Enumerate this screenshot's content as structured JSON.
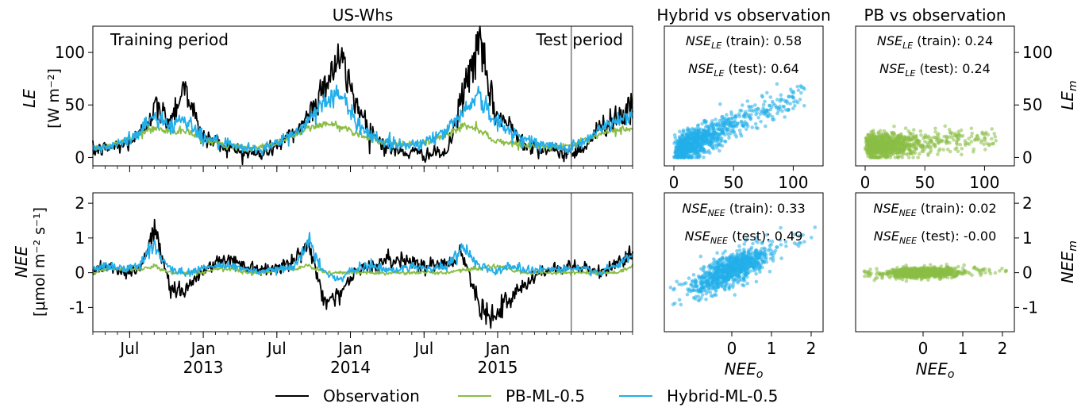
{
  "colors": {
    "observation": "#000000",
    "pb": "#8bbd45",
    "hybrid": "#23aeea",
    "divider": "#808080"
  },
  "legend": {
    "placement": "bottom-center",
    "items": [
      "Observation",
      "PB-ML-0.5",
      "Hybrid-ML-0.5"
    ]
  },
  "chart_data": [
    {
      "type": "line",
      "title": "US-Whs",
      "ylabel_line1": "LE",
      "ylabel_line2": "[W m⁻²]",
      "annotations": [
        "Training period",
        "Test period"
      ],
      "x_range": [
        "2012-04",
        "2015-12"
      ],
      "split_date": "2015-07",
      "ylim": [
        -8,
        125
      ],
      "yticks": [
        0,
        50,
        100
      ],
      "xtick_labels": [
        {
          "date": "2012-07",
          "label": "Jul",
          "year": ""
        },
        {
          "date": "2013-01",
          "label": "Jan",
          "year": "2013"
        },
        {
          "date": "2013-07",
          "label": "Jul",
          "year": ""
        },
        {
          "date": "2014-01",
          "label": "Jan",
          "year": "2014"
        },
        {
          "date": "2014-07",
          "label": "Jul",
          "year": ""
        },
        {
          "date": "2015-01",
          "label": "Jan",
          "year": "2015"
        }
      ],
      "series": [
        {
          "name": "Observation",
          "values": [
            6,
            9,
            12,
            20,
            48,
            35,
            70,
            20,
            15,
            8,
            4,
            3,
            12,
            22,
            40,
            70,
            95,
            55,
            25,
            10,
            5,
            4,
            3,
            5,
            60,
            110,
            45,
            30,
            15,
            8,
            6,
            3,
            12,
            30,
            40,
            45
          ]
        },
        {
          "name": "PB-ML-0.5",
          "values": [
            8,
            11,
            15,
            22,
            28,
            24,
            25,
            18,
            14,
            10,
            9,
            10,
            14,
            20,
            28,
            32,
            30,
            24,
            18,
            14,
            12,
            13,
            16,
            22,
            30,
            28,
            16,
            14,
            12,
            10,
            10,
            12,
            16,
            22,
            26,
            28
          ]
        },
        {
          "name": "Hybrid-ML-0.5",
          "values": [
            7,
            10,
            14,
            24,
            40,
            30,
            38,
            20,
            15,
            10,
            8,
            8,
            14,
            22,
            35,
            55,
            60,
            35,
            22,
            14,
            12,
            13,
            18,
            26,
            45,
            60,
            35,
            25,
            18,
            12,
            10,
            10,
            16,
            28,
            34,
            40
          ]
        }
      ]
    },
    {
      "type": "scatter",
      "title": "Hybrid vs observation",
      "annotations": [
        "NSE_LE (train): 0.58",
        "NSE_LE (test): 0.64"
      ],
      "xlim": [
        -8,
        125
      ],
      "ylim": [
        -8,
        125
      ],
      "xticks": [
        0,
        50,
        100
      ]
    },
    {
      "type": "scatter",
      "title": "PB vs observation",
      "ylabel": "LE_m",
      "annotations": [
        "NSE_LE (train): 0.24",
        "NSE_LE (test): 0.24"
      ],
      "xlim": [
        -8,
        125
      ],
      "ylim": [
        -8,
        125
      ],
      "xticks": [
        0,
        50,
        100
      ],
      "yticks": [
        0,
        50,
        100
      ]
    },
    {
      "type": "line",
      "ylabel_line1": "NEE",
      "ylabel_line2": "[μmol m⁻² s⁻¹]",
      "x_range": [
        "2012-04",
        "2015-12"
      ],
      "split_date": "2015-07",
      "ylim": [
        -1.7,
        2.3
      ],
      "yticks": [
        -1,
        0,
        1,
        2
      ],
      "series": [
        {
          "name": "Observation",
          "values": [
            0.1,
            0.2,
            0.0,
            0.1,
            1.2,
            -0.4,
            -0.5,
            0.0,
            0.3,
            0.4,
            0.2,
            0.1,
            0.2,
            0.3,
            0.8,
            -0.8,
            -0.6,
            0.0,
            0.2,
            0.3,
            0.4,
            0.3,
            0.2,
            0.3,
            0.5,
            -0.8,
            -1.3,
            -0.8,
            -0.4,
            0.0,
            0.1,
            0.2,
            0.1,
            0.0,
            0.3,
            0.6
          ]
        },
        {
          "name": "PB-ML-0.5",
          "values": [
            0.0,
            0.1,
            0.1,
            0.1,
            0.2,
            0.0,
            0.0,
            0.0,
            0.1,
            0.1,
            0.0,
            0.0,
            0.1,
            0.1,
            0.2,
            0.0,
            0.0,
            0.0,
            0.0,
            0.0,
            0.0,
            0.0,
            0.0,
            0.0,
            0.1,
            0.1,
            0.2,
            0.1,
            0.0,
            0.0,
            0.0,
            0.0,
            0.0,
            0.0,
            0.0,
            0.2
          ]
        },
        {
          "name": "Hybrid-ML-0.5",
          "values": [
            0.1,
            0.2,
            0.1,
            0.2,
            0.8,
            0.1,
            0.0,
            0.1,
            0.2,
            0.2,
            0.1,
            0.0,
            0.1,
            0.2,
            0.9,
            0.0,
            -0.2,
            0.1,
            0.2,
            0.1,
            0.1,
            0.2,
            0.1,
            0.2,
            0.7,
            0.3,
            0.0,
            0.2,
            0.1,
            0.1,
            0.1,
            0.1,
            0.1,
            0.0,
            0.2,
            0.5
          ]
        }
      ]
    },
    {
      "type": "scatter",
      "xlabel": "NEE_o",
      "annotations": [
        "NSE_NEE (train): 0.33",
        "NSE_NEE (test): 0.49"
      ],
      "xlim": [
        -1.7,
        2.3
      ],
      "ylim": [
        -1.7,
        2.3
      ],
      "xticks": [
        0,
        1,
        2
      ]
    },
    {
      "type": "scatter",
      "xlabel": "NEE_o",
      "ylabel": "NEE_m",
      "annotations": [
        "NSE_NEE (train): 0.02",
        "NSE_NEE (test): -0.00"
      ],
      "xlim": [
        -1.7,
        2.3
      ],
      "ylim": [
        -1.7,
        2.3
      ],
      "xticks": [
        0,
        1,
        2
      ],
      "yticks": [
        -1,
        0,
        1,
        2
      ]
    }
  ]
}
